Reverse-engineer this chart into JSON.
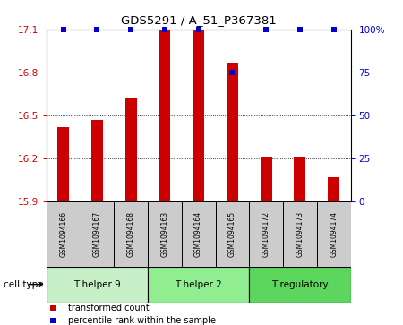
{
  "title": "GDS5291 / A_51_P367381",
  "samples": [
    "GSM1094166",
    "GSM1094167",
    "GSM1094168",
    "GSM1094163",
    "GSM1094164",
    "GSM1094165",
    "GSM1094172",
    "GSM1094173",
    "GSM1094174"
  ],
  "transformed_counts": [
    16.42,
    16.47,
    16.62,
    17.1,
    17.1,
    16.87,
    16.21,
    16.21,
    16.07
  ],
  "percentile_ranks": [
    100,
    100,
    100,
    100,
    100,
    75,
    100,
    100,
    100
  ],
  "ylim_left": [
    15.9,
    17.1
  ],
  "ylim_right": [
    0,
    100
  ],
  "yticks_left": [
    15.9,
    16.2,
    16.5,
    16.8,
    17.1
  ],
  "yticks_right": [
    0,
    25,
    50,
    75,
    100
  ],
  "cell_type_groups": [
    {
      "label": "T helper 9",
      "start": 0,
      "end": 3,
      "color": "#c8f0c8"
    },
    {
      "label": "T helper 2",
      "start": 3,
      "end": 6,
      "color": "#90ee90"
    },
    {
      "label": "T regulatory",
      "start": 6,
      "end": 9,
      "color": "#5cd65c"
    }
  ],
  "bar_color": "#cc0000",
  "dot_color": "#0000cc",
  "grid_color": "#000000",
  "background_color": "#ffffff",
  "label_box_color": "#cccccc",
  "legend_bar_label": "transformed count",
  "legend_dot_label": "percentile rank within the sample",
  "cell_type_label": "cell type",
  "bar_width": 0.35
}
